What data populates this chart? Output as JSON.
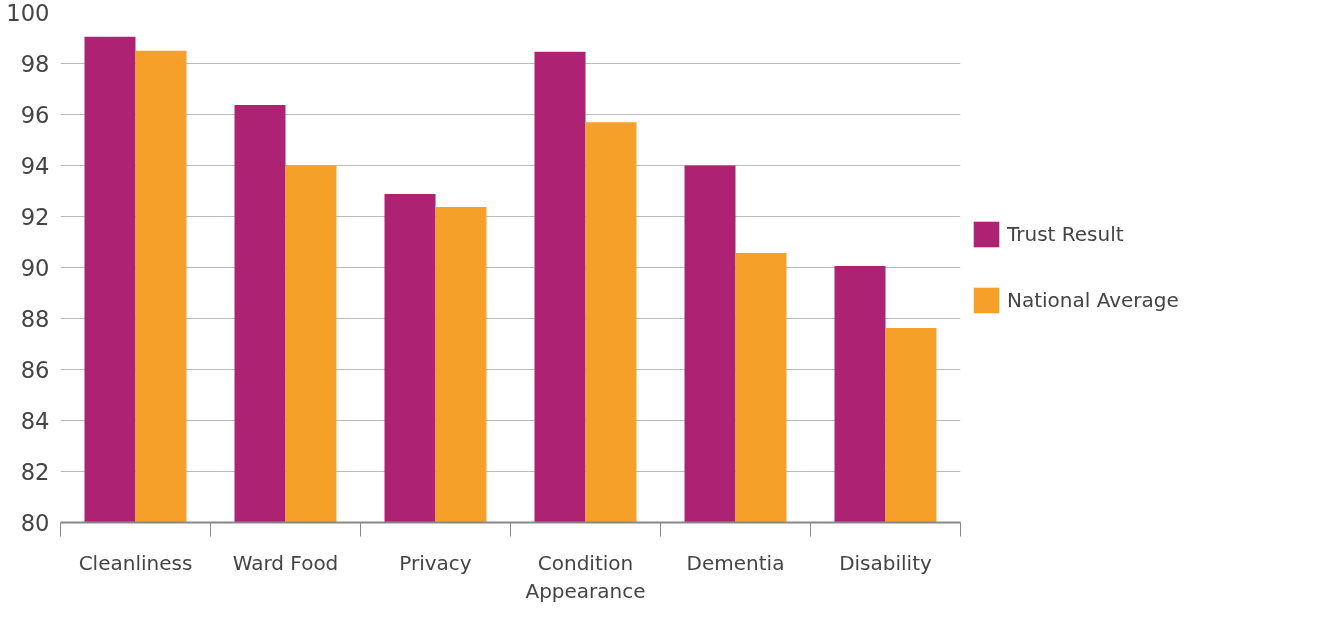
{
  "chart_data": {
    "type": "bar",
    "categories": [
      "Cleanliness",
      "Ward Food",
      "Privacy",
      "Condition Appearance",
      "Dementia",
      "Disability"
    ],
    "series": [
      {
        "name": "Trust Result",
        "color": "#ad2273",
        "values": [
          99.05,
          96.37,
          92.88,
          98.46,
          94.0,
          90.06
        ]
      },
      {
        "name": "National Average",
        "color": "#f5a029",
        "values": [
          98.5,
          94.0,
          92.37,
          95.7,
          90.57,
          87.63
        ]
      }
    ],
    "ylim": [
      80,
      100
    ],
    "yticks": [
      80,
      82,
      84,
      86,
      88,
      90,
      92,
      94,
      96,
      98,
      100
    ],
    "grid": "y",
    "legend": "right"
  }
}
